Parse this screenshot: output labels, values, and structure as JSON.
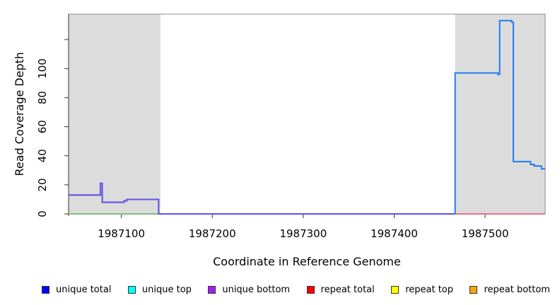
{
  "chart_data": {
    "type": "line",
    "title": "",
    "xlabel": "Coordinate in Reference Genome",
    "ylabel": "Read Coverage Depth",
    "xlim": [
      1987042,
      1987566
    ],
    "ylim": [
      0,
      137.5
    ],
    "grid": false,
    "x_ticks": [
      1987100,
      1987200,
      1987300,
      1987400,
      1987500
    ],
    "x_tick_labels": [
      "1987100",
      "1987200",
      "1987300",
      "1987400",
      "1987500"
    ],
    "y_ticks": [
      0,
      20,
      40,
      60,
      80,
      100,
      120
    ],
    "y_tick_labels": [
      "0",
      "20",
      "40",
      "60",
      "80",
      "100",
      ""
    ],
    "repeat_region_bands": [
      {
        "x0": 1987042,
        "x1": 1987143
      },
      {
        "x0": 1987467,
        "x1": 1987566
      }
    ],
    "band_color": "#dcdcdc",
    "frame_color": "#8c8c8c",
    "axis_color": "#333333",
    "series": [
      {
        "name": "green-zero-overlap-line",
        "color": "#7fbf7f",
        "width": 2,
        "points": [
          [
            1987042,
            0
          ],
          [
            1987143,
            0
          ]
        ]
      },
      {
        "name": "unique-purple-coverage",
        "color": "#6a5ae0",
        "width": 2.2,
        "points": [
          [
            1987042,
            13
          ],
          [
            1987077,
            13
          ],
          [
            1987077,
            21
          ],
          [
            1987079,
            21
          ],
          [
            1987079,
            8
          ],
          [
            1987103,
            8
          ],
          [
            1987103,
            9
          ],
          [
            1987106,
            9
          ],
          [
            1987106,
            10
          ],
          [
            1987141,
            10
          ],
          [
            1987141,
            0
          ],
          [
            1987467,
            0
          ]
        ]
      },
      {
        "name": "repeat-total-red-baseline",
        "color": "#e0607a",
        "width": 1.8,
        "points": [
          [
            1987467,
            0
          ],
          [
            1987566,
            0
          ]
        ]
      },
      {
        "name": "unique-total-blue-coverage",
        "color": "#1f7bf5",
        "width": 2,
        "points": [
          [
            1987467,
            0
          ],
          [
            1987467,
            97
          ],
          [
            1987514,
            97
          ],
          [
            1987514,
            96
          ],
          [
            1987516,
            96
          ],
          [
            1987516,
            133
          ],
          [
            1987529,
            133
          ],
          [
            1987529,
            132
          ],
          [
            1987531,
            132
          ],
          [
            1987531,
            36
          ],
          [
            1987550,
            36
          ],
          [
            1987550,
            34
          ],
          [
            1987554,
            34
          ],
          [
            1987554,
            33
          ],
          [
            1987562,
            33
          ],
          [
            1987562,
            31
          ],
          [
            1987566,
            31
          ]
        ]
      }
    ],
    "legend": {
      "position": "bottom",
      "items": [
        {
          "label": "unique total",
          "color": "#0000ff"
        },
        {
          "label": "unique top",
          "color": "#00ffff"
        },
        {
          "label": "unique bottom",
          "color": "#a020f0"
        },
        {
          "label": "repeat total",
          "color": "#ff0000"
        },
        {
          "label": "repeat top",
          "color": "#ffff00"
        },
        {
          "label": "repeat bottom",
          "color": "#ffa500"
        }
      ]
    }
  }
}
